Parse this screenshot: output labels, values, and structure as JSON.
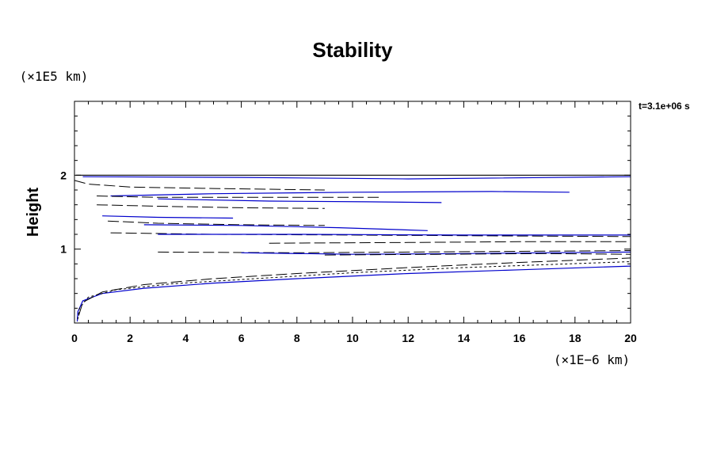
{
  "chart_data": {
    "type": "line",
    "title": "Stability",
    "ylabel": "Height",
    "y_unit": "(×1E5 km)",
    "x_unit": "(×1E−6 km)",
    "time_label": "t=3.1e+06 s",
    "xlim": [
      0,
      20
    ],
    "ylim": [
      0,
      3
    ],
    "x_ticks": [
      0,
      2,
      4,
      6,
      8,
      10,
      12,
      14,
      16,
      18,
      20
    ],
    "y_ticks": [
      1,
      2
    ],
    "grid": false,
    "colors": {
      "blue": "#0000cc",
      "black": "#000000"
    },
    "series": [
      {
        "color": "#0000cc",
        "style": "solid",
        "points": [
          [
            0.1,
            0.02
          ],
          [
            0.12,
            0.15
          ],
          [
            0.3,
            0.3
          ],
          [
            1,
            0.4
          ],
          [
            2.5,
            0.47
          ],
          [
            5,
            0.54
          ],
          [
            8,
            0.6
          ],
          [
            12,
            0.67
          ],
          [
            16,
            0.72
          ],
          [
            20,
            0.77
          ]
        ]
      },
      {
        "color": "#000000",
        "style": "dotted",
        "points": [
          [
            0.12,
            0.05
          ],
          [
            0.18,
            0.2
          ],
          [
            0.5,
            0.35
          ],
          [
            1.5,
            0.45
          ],
          [
            3.5,
            0.53
          ],
          [
            6.5,
            0.6
          ],
          [
            10,
            0.68
          ],
          [
            14,
            0.75
          ],
          [
            20,
            0.83
          ]
        ]
      },
      {
        "color": "#000000",
        "style": "dashed",
        "points": [
          [
            0.15,
            0.1
          ],
          [
            0.3,
            0.28
          ],
          [
            1,
            0.42
          ],
          [
            2.5,
            0.52
          ],
          [
            5,
            0.6
          ],
          [
            8,
            0.67
          ],
          [
            12,
            0.75
          ],
          [
            16,
            0.82
          ],
          [
            20,
            0.88
          ]
        ]
      },
      {
        "color": "#000000",
        "style": "solid",
        "points": [
          [
            0.05,
            2.0
          ],
          [
            20,
            2.0
          ]
        ]
      },
      {
        "color": "#0000cc",
        "style": "solid",
        "points": [
          [
            0.3,
            1.98
          ],
          [
            6,
            1.97
          ],
          [
            12,
            1.95
          ],
          [
            20,
            1.98
          ]
        ]
      },
      {
        "color": "#000000",
        "style": "dashed",
        "points": [
          [
            0,
            1.93
          ],
          [
            0.5,
            1.88
          ],
          [
            2,
            1.84
          ],
          [
            5,
            1.82
          ],
          [
            9,
            1.8
          ]
        ]
      },
      {
        "color": "#0000cc",
        "style": "solid",
        "points": [
          [
            1.3,
            1.72
          ],
          [
            5,
            1.75
          ],
          [
            10,
            1.77
          ],
          [
            15,
            1.78
          ],
          [
            17.8,
            1.77
          ]
        ]
      },
      {
        "color": "#000000",
        "style": "dashed",
        "points": [
          [
            0.8,
            1.72
          ],
          [
            3,
            1.7
          ],
          [
            7,
            1.7
          ],
          [
            11,
            1.7
          ]
        ]
      },
      {
        "color": "#0000cc",
        "style": "solid",
        "points": [
          [
            3,
            1.68
          ],
          [
            7,
            1.65
          ],
          [
            10.5,
            1.64
          ],
          [
            13.2,
            1.63
          ]
        ]
      },
      {
        "color": "#000000",
        "style": "dashed",
        "points": [
          [
            0.8,
            1.6
          ],
          [
            3,
            1.58
          ],
          [
            6,
            1.56
          ],
          [
            9,
            1.55
          ]
        ]
      },
      {
        "color": "#0000cc",
        "style": "solid",
        "points": [
          [
            1,
            1.45
          ],
          [
            3,
            1.43
          ],
          [
            5.7,
            1.42
          ]
        ]
      },
      {
        "color": "#000000",
        "style": "dashed",
        "points": [
          [
            1.2,
            1.38
          ],
          [
            3,
            1.35
          ],
          [
            6,
            1.33
          ],
          [
            9,
            1.32
          ]
        ]
      },
      {
        "color": "#0000cc",
        "style": "solid",
        "points": [
          [
            2.5,
            1.33
          ],
          [
            6,
            1.32
          ],
          [
            9.5,
            1.29
          ],
          [
            12.7,
            1.25
          ]
        ]
      },
      {
        "color": "#000000",
        "style": "dashed",
        "points": [
          [
            1.3,
            1.22
          ],
          [
            5,
            1.2
          ],
          [
            10,
            1.19
          ],
          [
            15,
            1.18
          ],
          [
            20,
            1.17
          ]
        ]
      },
      {
        "color": "#0000cc",
        "style": "solid",
        "points": [
          [
            3,
            1.2
          ],
          [
            8,
            1.2
          ],
          [
            14,
            1.19
          ],
          [
            20,
            1.19
          ]
        ]
      },
      {
        "color": "#000000",
        "style": "dashed",
        "points": [
          [
            7,
            1.08
          ],
          [
            12,
            1.09
          ],
          [
            16,
            1.1
          ],
          [
            20,
            1.1
          ]
        ]
      },
      {
        "color": "#000000",
        "style": "dashed",
        "points": [
          [
            3,
            0.96
          ],
          [
            8,
            0.95
          ],
          [
            12,
            0.96
          ],
          [
            16,
            0.97
          ],
          [
            20,
            0.98
          ]
        ]
      },
      {
        "color": "#0000cc",
        "style": "solid",
        "points": [
          [
            6,
            0.95
          ],
          [
            10,
            0.93
          ],
          [
            14,
            0.94
          ],
          [
            17,
            0.95
          ],
          [
            20,
            0.96
          ]
        ]
      },
      {
        "color": "#000000",
        "style": "dashed",
        "points": [
          [
            9,
            0.92
          ],
          [
            13,
            0.93
          ],
          [
            17,
            0.94
          ],
          [
            20,
            0.93
          ]
        ]
      }
    ]
  }
}
